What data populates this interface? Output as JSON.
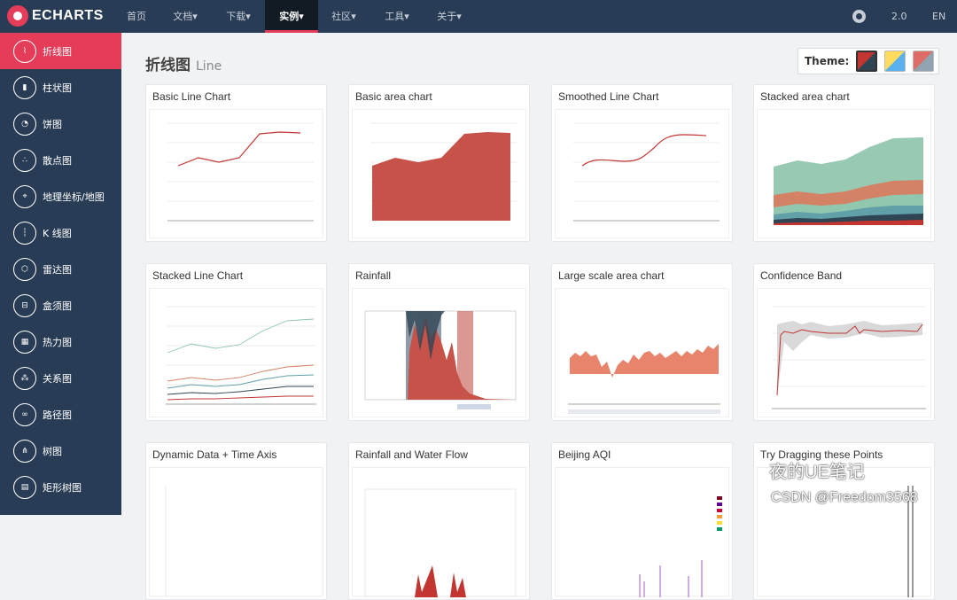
{
  "topnav": {
    "logo_text": "ECHARTS",
    "items": [
      {
        "label": "首页"
      },
      {
        "label": "文档▾"
      },
      {
        "label": "下载▾"
      },
      {
        "label": "实例▾"
      },
      {
        "label": "社区▾"
      },
      {
        "label": "工具▾"
      },
      {
        "label": "关于▾"
      }
    ],
    "version": "2.0",
    "lang": "EN"
  },
  "sidebar": {
    "items": [
      {
        "label": "折线图",
        "icon": "line-chart-icon"
      },
      {
        "label": "柱状图",
        "icon": "bar-chart-icon"
      },
      {
        "label": "饼图",
        "icon": "pie-chart-icon"
      },
      {
        "label": "散点图",
        "icon": "scatter-icon"
      },
      {
        "label": "地理坐标/地图",
        "icon": "map-icon"
      },
      {
        "label": "K 线图",
        "icon": "candlestick-icon"
      },
      {
        "label": "雷达图",
        "icon": "radar-icon"
      },
      {
        "label": "盒须图",
        "icon": "boxplot-icon"
      },
      {
        "label": "热力图",
        "icon": "heatmap-icon"
      },
      {
        "label": "关系图",
        "icon": "graph-icon"
      },
      {
        "label": "路径图",
        "icon": "lines-icon"
      },
      {
        "label": "树图",
        "icon": "tree-icon"
      },
      {
        "label": "矩形树图",
        "icon": "treemap-icon"
      }
    ]
  },
  "main": {
    "title": "折线图",
    "subtitle": "Line",
    "theme_label": "Theme:"
  },
  "cards": [
    {
      "title": "Basic Line Chart"
    },
    {
      "title": "Basic area chart"
    },
    {
      "title": "Smoothed Line Chart"
    },
    {
      "title": "Stacked area chart"
    },
    {
      "title": "Stacked Line Chart"
    },
    {
      "title": "Rainfall"
    },
    {
      "title": "Large scale area chart"
    },
    {
      "title": "Confidence Band"
    },
    {
      "title": "Dynamic Data + Time Axis"
    },
    {
      "title": "Rainfall and Water Flow"
    },
    {
      "title": "Beijing AQI"
    },
    {
      "title": "Try Dragging these Points"
    }
  ],
  "watermark": {
    "line1": "夜的UE笔记",
    "line2": "CSDN @Freedom3568"
  },
  "colors": {
    "nav_bg": "#293c55",
    "accent": "#e43c59",
    "active_nav": "#121a24",
    "line_red": "#c23531",
    "area_fill": "#c6524a"
  }
}
